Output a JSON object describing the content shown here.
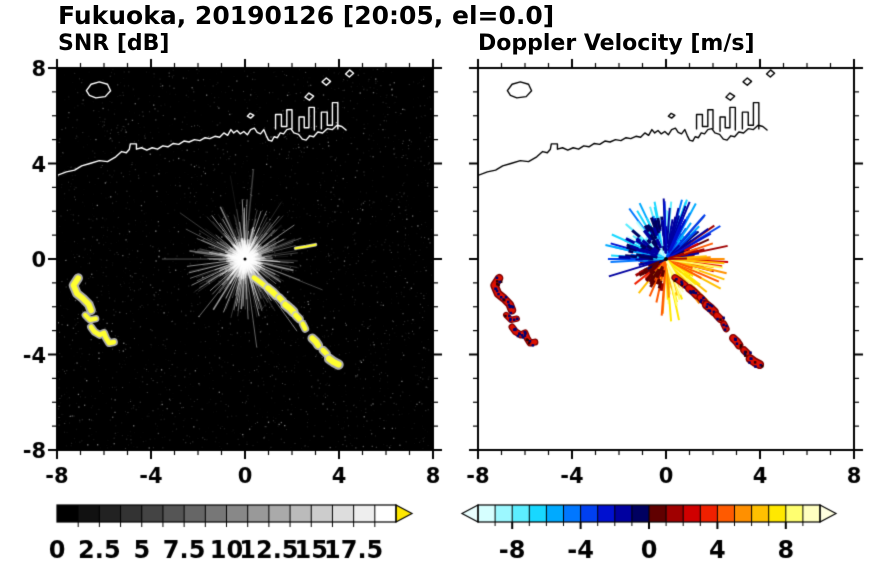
{
  "title": "Fukuoka, 20190126 [20:05, el=0.0]",
  "chart_data": {
    "type": "radar_ppi_pair",
    "site": "Fukuoka",
    "date": "20190126",
    "time": "20:05",
    "elevation": 0.0,
    "axes": {
      "xlim": [
        -8,
        8
      ],
      "ylim": [
        -8,
        8
      ],
      "major_ticks": [
        -8,
        -4,
        0,
        4,
        8
      ],
      "major_tick_labels": [
        "-8",
        "-4",
        "0",
        "4",
        "8"
      ],
      "minor_tick_step": 1
    },
    "panels": [
      {
        "id": "snr",
        "title": "SNR [dB]",
        "background": "#000000",
        "colorbar": {
          "min": 0,
          "max": 20,
          "segments": 16,
          "colormap": "grayscale",
          "tick_step": 1.25,
          "labels": [
            "0",
            "2.5",
            "5",
            "7.5",
            "10",
            "12.5",
            "15",
            "17.5"
          ],
          "label_values": [
            0,
            2.5,
            5,
            7.5,
            10,
            12.5,
            15,
            17.5
          ],
          "over_arrow_color": "#ffe800"
        }
      },
      {
        "id": "doppler",
        "title": "Doppler Velocity [m/s]",
        "background": "#ffffff",
        "colorbar": {
          "min": -10,
          "max": 10,
          "segments": 20,
          "tick_step": 1,
          "labels": [
            "-8",
            "-4",
            "0",
            "4",
            "8"
          ],
          "label_values": [
            -8,
            -4,
            0,
            4,
            8
          ],
          "segment_colors": [
            "#d6ffff",
            "#9cf8ff",
            "#5ceeff",
            "#18d8ff",
            "#00aaff",
            "#0077ff",
            "#0040f0",
            "#0010d0",
            "#0000a0",
            "#000060",
            "#600000",
            "#a00000",
            "#d00000",
            "#f02000",
            "#ff5a00",
            "#ff9000",
            "#ffc000",
            "#ffe800",
            "#ffff70",
            "#ffffc0"
          ],
          "under_arrow_color": "#eaffff",
          "over_arrow_color": "#ffffe0"
        }
      }
    ],
    "radar": {
      "center": [
        0,
        0
      ],
      "fan_max_range": 2.8,
      "doppler_positive_axis_deg": -60,
      "doppler_vmax": 8
    },
    "coastline": {
      "mainland": [
        [
          -8,
          3.5
        ],
        [
          -7.6,
          3.65
        ],
        [
          -7.25,
          3.72
        ],
        [
          -6.95,
          3.9
        ],
        [
          -6.6,
          4.0
        ],
        [
          -6.2,
          4.12
        ],
        [
          -5.85,
          4.08
        ],
        [
          -5.5,
          4.28
        ],
        [
          -5.25,
          4.5
        ],
        [
          -5.05,
          4.45
        ],
        [
          -4.92,
          4.6
        ],
        [
          -4.88,
          4.82
        ],
        [
          -4.62,
          4.82
        ],
        [
          -4.62,
          4.6
        ],
        [
          -4.4,
          4.66
        ],
        [
          -4.18,
          4.56
        ],
        [
          -3.95,
          4.66
        ],
        [
          -3.72,
          4.6
        ],
        [
          -3.5,
          4.74
        ],
        [
          -3.28,
          4.7
        ],
        [
          -3.05,
          4.84
        ],
        [
          -2.82,
          4.8
        ],
        [
          -2.6,
          4.94
        ],
        [
          -2.38,
          4.9
        ],
        [
          -2.15,
          5.0
        ],
        [
          -1.92,
          4.96
        ],
        [
          -1.7,
          5.08
        ],
        [
          -1.5,
          5.04
        ],
        [
          -1.28,
          5.14
        ],
        [
          -1.08,
          5.1
        ],
        [
          -0.9,
          5.28
        ],
        [
          -0.74,
          5.18
        ],
        [
          -0.6,
          5.42
        ],
        [
          -0.48,
          5.28
        ],
        [
          -0.34,
          5.38
        ],
        [
          -0.2,
          5.24
        ],
        [
          -0.05,
          5.34
        ],
        [
          0.1,
          5.2
        ],
        [
          0.24,
          5.42
        ],
        [
          0.4,
          5.48
        ],
        [
          0.52,
          5.3
        ],
        [
          0.66,
          5.24
        ],
        [
          0.8,
          5.42
        ],
        [
          0.9,
          5.18
        ],
        [
          1.0,
          4.98
        ],
        [
          1.14,
          4.94
        ],
        [
          1.24,
          5.12
        ],
        [
          1.38,
          5.08
        ],
        [
          1.5,
          5.28
        ],
        [
          1.64,
          5.24
        ],
        [
          1.78,
          5.42
        ],
        [
          1.95,
          5.46
        ],
        [
          2.08,
          5.28
        ],
        [
          2.28,
          5.22
        ],
        [
          2.44,
          5.02
        ],
        [
          2.6,
          4.98
        ],
        [
          2.76,
          5.16
        ],
        [
          2.92,
          5.12
        ],
        [
          3.1,
          5.32
        ],
        [
          3.3,
          5.28
        ],
        [
          3.5,
          5.46
        ],
        [
          3.72,
          5.42
        ],
        [
          3.92,
          5.6
        ],
        [
          4.12,
          5.55
        ],
        [
          4.3,
          5.4
        ]
      ],
      "piers": [
        [
          [
            1.3,
            5.45
          ],
          [
            1.3,
            6.05
          ],
          [
            1.55,
            6.05
          ],
          [
            1.55,
            5.55
          ],
          [
            1.78,
            5.55
          ],
          [
            1.78,
            6.25
          ],
          [
            2.0,
            6.25
          ],
          [
            2.0,
            5.45
          ]
        ],
        [
          [
            2.3,
            5.35
          ],
          [
            2.3,
            5.95
          ],
          [
            2.52,
            5.95
          ],
          [
            2.52,
            5.5
          ],
          [
            2.72,
            5.5
          ],
          [
            2.72,
            6.35
          ],
          [
            2.95,
            6.35
          ],
          [
            2.95,
            5.4
          ]
        ],
        [
          [
            3.25,
            5.45
          ],
          [
            3.25,
            6.15
          ],
          [
            3.5,
            6.15
          ],
          [
            3.5,
            5.6
          ],
          [
            3.72,
            5.6
          ],
          [
            3.72,
            6.55
          ],
          [
            3.95,
            6.55
          ],
          [
            3.95,
            5.45
          ]
        ]
      ],
      "islands": [
        [
          [
            -6.75,
            7.05
          ],
          [
            -6.55,
            7.32
          ],
          [
            -6.2,
            7.42
          ],
          [
            -5.85,
            7.32
          ],
          [
            -5.72,
            7.05
          ],
          [
            -5.95,
            6.8
          ],
          [
            -6.35,
            6.75
          ],
          [
            -6.62,
            6.85
          ]
        ],
        [
          [
            0.1,
            5.98
          ],
          [
            0.22,
            6.1
          ],
          [
            0.38,
            6.02
          ],
          [
            0.24,
            5.9
          ]
        ],
        [
          [
            2.55,
            6.78
          ],
          [
            2.72,
            6.95
          ],
          [
            2.92,
            6.82
          ],
          [
            2.74,
            6.65
          ]
        ],
        [
          [
            3.28,
            7.42
          ],
          [
            3.46,
            7.58
          ],
          [
            3.64,
            7.44
          ],
          [
            3.46,
            7.28
          ]
        ],
        [
          [
            4.28,
            7.75
          ],
          [
            4.45,
            7.92
          ],
          [
            4.62,
            7.78
          ],
          [
            4.44,
            7.62
          ]
        ]
      ]
    },
    "echoes": [
      {
        "points": [
          [
            -7.1,
            -0.8
          ],
          [
            -7.3,
            -1.1
          ],
          [
            -7.15,
            -1.45
          ],
          [
            -6.9,
            -1.65
          ],
          [
            -6.65,
            -1.9
          ],
          [
            -6.55,
            -2.15
          ]
        ],
        "width": 0.24,
        "panels": [
          "snr",
          "doppler"
        ]
      },
      {
        "points": [
          [
            -6.8,
            -2.35
          ],
          [
            -6.6,
            -2.55
          ],
          [
            -6.35,
            -2.5
          ]
        ],
        "width": 0.18,
        "panels": [
          "snr",
          "doppler"
        ]
      },
      {
        "points": [
          [
            -6.55,
            -2.85
          ],
          [
            -6.4,
            -3.05
          ],
          [
            -6.18,
            -3.18
          ],
          [
            -6.0,
            -3.1
          ],
          [
            -5.92,
            -3.3
          ],
          [
            -5.78,
            -3.52
          ],
          [
            -5.58,
            -3.48
          ]
        ],
        "width": 0.2,
        "panels": [
          "snr",
          "doppler"
        ]
      },
      {
        "points": [
          [
            0.38,
            -0.78
          ],
          [
            0.62,
            -0.95
          ],
          [
            0.82,
            -1.1
          ]
        ],
        "width": 0.2,
        "panels": [
          "snr",
          "doppler"
        ]
      },
      {
        "points": [
          [
            0.98,
            -1.22
          ],
          [
            1.18,
            -1.38
          ],
          [
            1.32,
            -1.52
          ]
        ],
        "width": 0.24,
        "panels": [
          "snr",
          "doppler"
        ]
      },
      {
        "points": [
          [
            1.46,
            -1.62
          ],
          [
            1.62,
            -1.78
          ]
        ],
        "width": 0.22,
        "panels": [
          "snr",
          "doppler"
        ]
      },
      {
        "points": [
          [
            1.72,
            -1.92
          ],
          [
            1.92,
            -2.08
          ],
          [
            2.06,
            -2.22
          ]
        ],
        "width": 0.26,
        "panels": [
          "snr",
          "doppler"
        ]
      },
      {
        "points": [
          [
            2.16,
            -2.36
          ],
          [
            2.32,
            -2.52
          ]
        ],
        "width": 0.22,
        "panels": [
          "snr",
          "doppler"
        ]
      },
      {
        "points": [
          [
            2.46,
            -2.72
          ],
          [
            2.56,
            -2.92
          ]
        ],
        "width": 0.2,
        "panels": [
          "snr",
          "doppler"
        ]
      },
      {
        "points": [
          [
            2.86,
            -3.32
          ],
          [
            3.02,
            -3.47
          ],
          [
            3.12,
            -3.62
          ]
        ],
        "width": 0.24,
        "panels": [
          "snr",
          "doppler"
        ]
      },
      {
        "points": [
          [
            3.32,
            -3.82
          ],
          [
            3.47,
            -3.97
          ]
        ],
        "width": 0.22,
        "panels": [
          "snr",
          "doppler"
        ]
      },
      {
        "points": [
          [
            3.58,
            -4.18
          ],
          [
            3.78,
            -4.32
          ],
          [
            3.98,
            -4.42
          ]
        ],
        "width": 0.26,
        "panels": [
          "snr",
          "doppler"
        ]
      },
      {
        "points": [
          [
            2.15,
            0.45
          ],
          [
            2.6,
            0.52
          ],
          [
            3.0,
            0.6
          ]
        ],
        "width": 0.09,
        "panels": [
          "snr"
        ]
      }
    ]
  }
}
